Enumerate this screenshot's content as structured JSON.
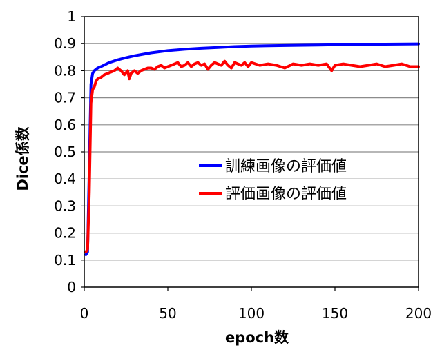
{
  "chart_data": {
    "type": "line",
    "xlabel": "epoch数",
    "ylabel": "Dice係数",
    "xlim": [
      0,
      200
    ],
    "ylim": [
      0,
      1
    ],
    "xticks": [
      "0",
      "50",
      "100",
      "150",
      "200"
    ],
    "yticks": [
      "0",
      "0.1",
      "0.2",
      "0.3",
      "0.4",
      "0.5",
      "0.6",
      "0.7",
      "0.8",
      "0.9",
      "1"
    ],
    "legend_position": "center-right",
    "grid": "horizontal",
    "series": [
      {
        "name": "訓練画像の評価値",
        "color": "#0000ff",
        "x": [
          1,
          2,
          3,
          4,
          5,
          6,
          8,
          10,
          15,
          20,
          25,
          30,
          40,
          50,
          60,
          70,
          80,
          90,
          100,
          120,
          140,
          160,
          180,
          200
        ],
        "y": [
          0.12,
          0.13,
          0.45,
          0.75,
          0.79,
          0.8,
          0.81,
          0.815,
          0.83,
          0.84,
          0.848,
          0.855,
          0.866,
          0.874,
          0.879,
          0.883,
          0.886,
          0.889,
          0.891,
          0.893,
          0.895,
          0.897,
          0.898,
          0.899
        ]
      },
      {
        "name": "評価画像の評価値",
        "color": "#ff0000",
        "x": [
          1,
          2,
          3,
          4,
          5,
          6,
          7,
          8,
          10,
          12,
          14,
          16,
          18,
          20,
          22,
          24,
          26,
          27,
          28,
          30,
          32,
          34,
          36,
          38,
          40,
          42,
          44,
          46,
          48,
          50,
          52,
          54,
          56,
          58,
          60,
          62,
          64,
          66,
          68,
          70,
          72,
          74,
          76,
          78,
          80,
          82,
          84,
          86,
          88,
          90,
          92,
          94,
          96,
          98,
          100,
          105,
          110,
          115,
          120,
          125,
          130,
          135,
          140,
          145,
          148,
          150,
          155,
          160,
          165,
          170,
          175,
          180,
          185,
          190,
          195,
          200
        ],
        "y": [
          0.13,
          0.14,
          0.35,
          0.68,
          0.73,
          0.74,
          0.76,
          0.77,
          0.775,
          0.785,
          0.79,
          0.795,
          0.8,
          0.81,
          0.8,
          0.785,
          0.8,
          0.77,
          0.79,
          0.8,
          0.79,
          0.8,
          0.805,
          0.81,
          0.81,
          0.805,
          0.815,
          0.82,
          0.81,
          0.815,
          0.82,
          0.825,
          0.83,
          0.815,
          0.82,
          0.83,
          0.815,
          0.825,
          0.83,
          0.82,
          0.825,
          0.805,
          0.82,
          0.83,
          0.825,
          0.82,
          0.835,
          0.82,
          0.81,
          0.83,
          0.825,
          0.82,
          0.83,
          0.815,
          0.83,
          0.82,
          0.825,
          0.82,
          0.81,
          0.825,
          0.82,
          0.825,
          0.82,
          0.825,
          0.8,
          0.82,
          0.825,
          0.82,
          0.815,
          0.82,
          0.825,
          0.815,
          0.82,
          0.825,
          0.815,
          0.815
        ]
      }
    ]
  }
}
